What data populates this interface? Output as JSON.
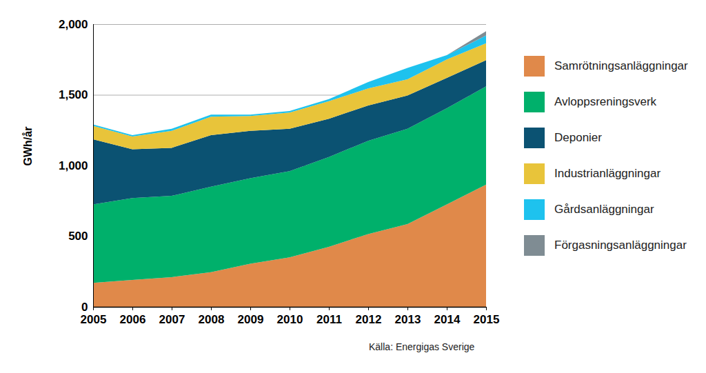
{
  "chart_data": {
    "type": "area",
    "stacked": true,
    "y_label": "GWh/år",
    "caption": "Källa: Energigas Sverige",
    "x": [
      2005,
      2006,
      2007,
      2008,
      2009,
      2010,
      2011,
      2012,
      2013,
      2014,
      2015
    ],
    "xlim": [
      2005,
      2015
    ],
    "xticks": [
      2005,
      2006,
      2007,
      2008,
      2009,
      2010,
      2011,
      2012,
      2013,
      2014,
      2015
    ],
    "ylim": [
      0,
      2000
    ],
    "yticks": [
      0,
      500,
      1000,
      1500,
      2000
    ],
    "grid": true,
    "legend": "right",
    "series": [
      {
        "name": "Samrötningsanläggningar",
        "color": "#e0894a",
        "values": [
          170,
          190,
          210,
          245,
          305,
          350,
          425,
          515,
          585,
          725,
          865
        ]
      },
      {
        "name": "Avloppsreningsverk",
        "color": "#00b06b",
        "values": [
          555,
          580,
          575,
          605,
          605,
          610,
          635,
          660,
          675,
          680,
          695
        ]
      },
      {
        "name": "Deponier",
        "color": "#0b5272",
        "values": [
          460,
          345,
          340,
          365,
          335,
          300,
          270,
          250,
          235,
          215,
          185
        ]
      },
      {
        "name": "Industrianläggningar",
        "color": "#e8c43a",
        "values": [
          95,
          90,
          120,
          130,
          105,
          115,
          125,
          120,
          115,
          130,
          120
        ]
      },
      {
        "name": "Gårdsanläggningar",
        "color": "#1ec2ee",
        "values": [
          10,
          10,
          15,
          15,
          10,
          10,
          15,
          45,
          80,
          30,
          55
        ]
      },
      {
        "name": "Förgasningsanläggningar",
        "color": "#7f8c93",
        "values": [
          0,
          0,
          0,
          0,
          0,
          0,
          0,
          0,
          0,
          0,
          30
        ]
      }
    ]
  }
}
